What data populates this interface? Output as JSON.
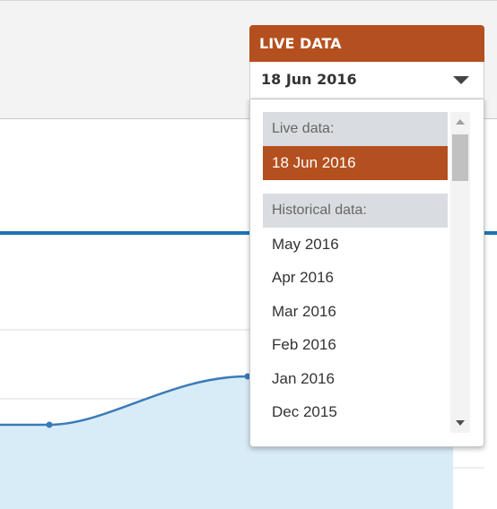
{
  "widget": {
    "header": "LIVE DATA",
    "selected": "18 Jun 2016",
    "accent_color": "#b4501f"
  },
  "dropdown": {
    "live_label": "Live data:",
    "live_option": "18 Jun 2016",
    "historical_label": "Historical data:",
    "historical_options": [
      "May 2016",
      "Apr 2016",
      "Mar 2016",
      "Feb 2016",
      "Jan 2016",
      "Dec 2015"
    ]
  },
  "chart": {
    "line_color": "#3b7bb8",
    "fill_color": "#d8ecf8",
    "header_rule_color": "#1f73b7"
  }
}
